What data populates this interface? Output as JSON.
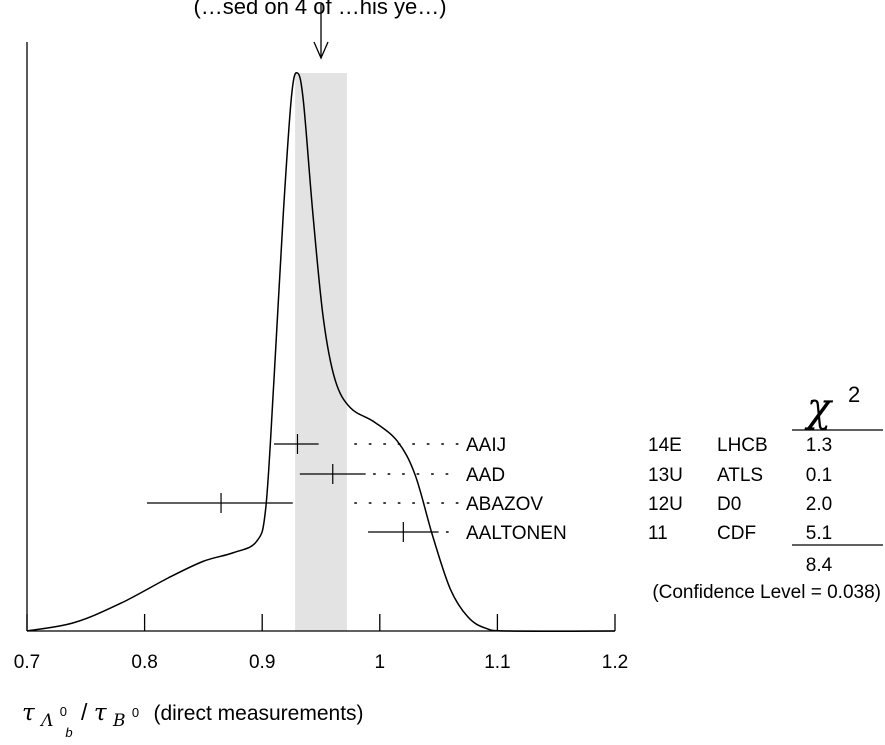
{
  "chart_data": {
    "type": "ideogram",
    "header_text": "(…sed on 4 of …his ye…)",
    "xlabel_text": "(direct measurements)",
    "xlabel_symbol": {
      "tau": "τ",
      "lambda": "Λ",
      "lambda_sup": "0",
      "lambda_sub": "b",
      "slash": "/",
      "b": "B",
      "b_sup": "0"
    },
    "xlim": [
      0.7,
      1.2
    ],
    "xticks": [
      0.7,
      0.8,
      0.9,
      1.0,
      1.1,
      1.2
    ],
    "xtick_labels": [
      "0.7",
      "0.8",
      "0.9",
      "1",
      "1.1",
      "1.2"
    ],
    "average": {
      "value": 0.95,
      "error_low": 0.928,
      "error_high": 0.972,
      "band_color": "#e3e3e3"
    },
    "ideogram_curve": [
      [
        0.7,
        0.0
      ],
      [
        0.74,
        0.015
      ],
      [
        0.78,
        0.05
      ],
      [
        0.82,
        0.095
      ],
      [
        0.85,
        0.125
      ],
      [
        0.875,
        0.14
      ],
      [
        0.895,
        0.16
      ],
      [
        0.903,
        0.22
      ],
      [
        0.91,
        0.45
      ],
      [
        0.918,
        0.75
      ],
      [
        0.925,
        0.96
      ],
      [
        0.93,
        1.0
      ],
      [
        0.935,
        0.95
      ],
      [
        0.943,
        0.75
      ],
      [
        0.952,
        0.56
      ],
      [
        0.962,
        0.45
      ],
      [
        0.975,
        0.4
      ],
      [
        0.995,
        0.375
      ],
      [
        1.015,
        0.34
      ],
      [
        1.03,
        0.28
      ],
      [
        1.045,
        0.17
      ],
      [
        1.06,
        0.075
      ],
      [
        1.075,
        0.025
      ],
      [
        1.09,
        0.005
      ],
      [
        1.11,
        0.0
      ],
      [
        1.2,
        0.0
      ]
    ],
    "chi2_symbol": "χ",
    "chi2_exp": "2",
    "measurements": [
      {
        "author": "AAIJ",
        "year": "14E",
        "experiment": "LHCB",
        "value": 0.93,
        "error_low": 0.91,
        "error_high": 0.948,
        "chi2": "1.3"
      },
      {
        "author": "AAD",
        "year": "13U",
        "experiment": "ATLS",
        "value": 0.96,
        "error_low": 0.932,
        "error_high": 0.988,
        "chi2": "0.1"
      },
      {
        "author": "ABAZOV",
        "year": "12U",
        "experiment": "D0",
        "value": 0.865,
        "error_low": 0.802,
        "error_high": 0.926,
        "chi2": "2.0"
      },
      {
        "author": "AALTONEN",
        "year": "11",
        "experiment": "CDF",
        "value": 1.02,
        "error_low": 0.99,
        "error_high": 1.05,
        "chi2": "5.1"
      }
    ],
    "chi2_total": "8.4",
    "confidence_level": "(Confidence Level = 0.038)"
  }
}
